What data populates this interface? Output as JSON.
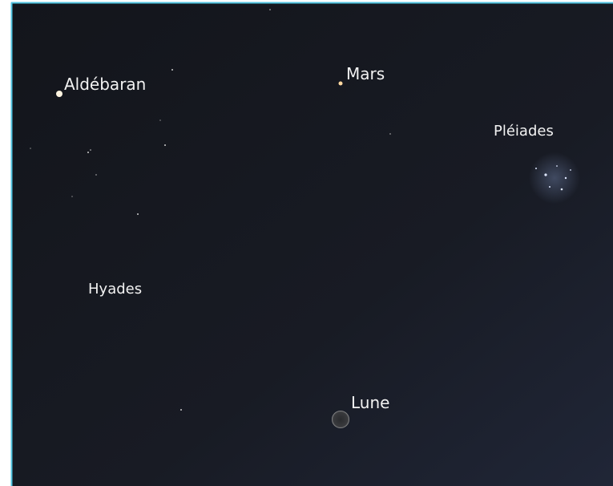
{
  "objects": [
    {
      "label": "Aldébaran"
    },
    {
      "label": "Mars"
    },
    {
      "label": "Pléiades"
    },
    {
      "label": "Hyades"
    },
    {
      "label": "Lune"
    }
  ]
}
